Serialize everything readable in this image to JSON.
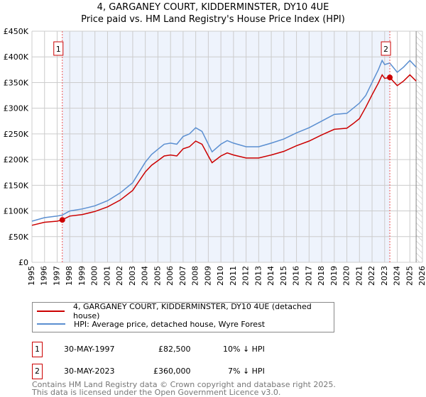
{
  "title": "4, GARGANEY COURT, KIDDERMINSTER, DY10 4UE",
  "subtitle": "Price paid vs. HM Land Registry's House Price Index (HPI)",
  "colors": {
    "property": "#cc0000",
    "hpi": "#5b8fd1",
    "shade": "#eef3fc",
    "grid": "#cccccc"
  },
  "chart_data": {
    "type": "line",
    "xlim": [
      1995,
      2026
    ],
    "ylim": [
      0,
      450000
    ],
    "x_ticks": [
      "1995",
      "1996",
      "1997",
      "1998",
      "1999",
      "2000",
      "2001",
      "2002",
      "2003",
      "2004",
      "2005",
      "2006",
      "2007",
      "2008",
      "2009",
      "2010",
      "2011",
      "2012",
      "2013",
      "2014",
      "2015",
      "2016",
      "2017",
      "2018",
      "2019",
      "2020",
      "2021",
      "2022",
      "2023",
      "2024",
      "2025",
      "2026"
    ],
    "y_ticks": [
      {
        "v": 0,
        "label": "£0"
      },
      {
        "v": 50000,
        "label": "£50K"
      },
      {
        "v": 100000,
        "label": "£100K"
      },
      {
        "v": 150000,
        "label": "£150K"
      },
      {
        "v": 200000,
        "label": "£200K"
      },
      {
        "v": 250000,
        "label": "£250K"
      },
      {
        "v": 300000,
        "label": "£300K"
      },
      {
        "v": 350000,
        "label": "£350K"
      },
      {
        "v": 400000,
        "label": "£400K"
      },
      {
        "v": 450000,
        "label": "£450K"
      }
    ],
    "grid": true,
    "x": [
      1995,
      1996,
      1997,
      1997.4,
      1998,
      1999,
      2000,
      2001,
      2002,
      2003,
      2003.5,
      2004,
      2004.5,
      2005,
      2005.5,
      2006,
      2006.5,
      2007,
      2007.5,
      2008,
      2008.5,
      2009,
      2009.3,
      2010,
      2010.5,
      2011,
      2012,
      2013,
      2014,
      2015,
      2016,
      2017,
      2018,
      2019,
      2020,
      2020.5,
      2021,
      2021.5,
      2022,
      2022.5,
      2022.8,
      2023,
      2023.4,
      2024,
      2024.5,
      2025,
      2025.5
    ],
    "series": [
      {
        "name": "4, GARGANEY COURT, KIDDERMINSTER, DY10 4UE (detached house)",
        "values": [
          72000,
          78000,
          80000,
          82500,
          90000,
          93000,
          99000,
          108000,
          121000,
          140000,
          158000,
          176000,
          189000,
          198000,
          207000,
          209000,
          207000,
          221000,
          225000,
          236000,
          230000,
          207000,
          194000,
          207000,
          213000,
          209000,
          203000,
          203000,
          209000,
          216000,
          227000,
          236000,
          248000,
          259000,
          261000,
          270000,
          280000,
          302000,
          326000,
          349000,
          365000,
          358000,
          360000,
          344000,
          353000,
          365000,
          353000
        ]
      },
      {
        "name": "HPI: Average price, detached house, Wyre Forest",
        "values": [
          80000,
          87000,
          90000,
          92000,
          100000,
          104000,
          110000,
          120000,
          135000,
          155000,
          175000,
          195000,
          210000,
          220000,
          230000,
          232000,
          230000,
          245000,
          250000,
          262000,
          255000,
          230000,
          215000,
          230000,
          237000,
          232000,
          225000,
          225000,
          232000,
          240000,
          252000,
          262000,
          275000,
          288000,
          290000,
          300000,
          310000,
          325000,
          350000,
          375000,
          393000,
          385000,
          388000,
          370000,
          380000,
          393000,
          380000
        ]
      }
    ],
    "sales": [
      {
        "id": "1",
        "x": 1997.41,
        "value": 82500
      },
      {
        "id": "2",
        "x": 2023.41,
        "value": 360000
      }
    ],
    "shaded_range": [
      1997.41,
      2023.41
    ],
    "hatched_from": 2025.5
  },
  "legend": {
    "property": "4, GARGANEY COURT, KIDDERMINSTER, DY10 4UE (detached house)",
    "hpi": "HPI: Average price, detached house, Wyre Forest"
  },
  "transactions": [
    {
      "id": "1",
      "date": "30-MAY-1997",
      "price": "£82,500",
      "delta": "10% ↓ HPI"
    },
    {
      "id": "2",
      "date": "30-MAY-2023",
      "price": "£360,000",
      "delta": "7% ↓ HPI"
    }
  ],
  "footer": {
    "line1": "Contains HM Land Registry data © Crown copyright and database right 2025.",
    "line2": "This data is licensed under the Open Government Licence v3.0."
  }
}
